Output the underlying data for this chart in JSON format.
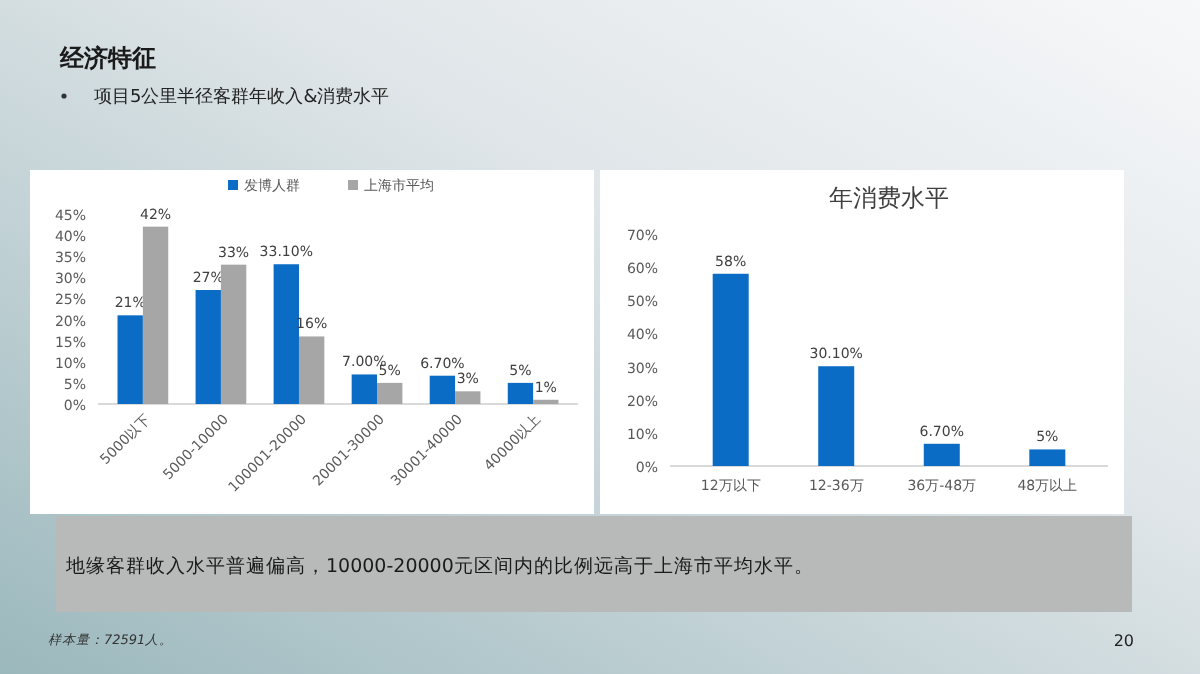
{
  "chart_data": [
    {
      "type": "bar",
      "title": "经济特征",
      "subtitle": "项目5公里半径客群年收入&消费水平",
      "categories": [
        "5000以下",
        "5000-10000",
        "100001-20000",
        "20001-30000",
        "30001-40000",
        "40000以上"
      ],
      "series": [
        {
          "name": "发博人群",
          "color": "#0a6cc4",
          "values": [
            21,
            27,
            33.1,
            7,
            6.7,
            5
          ],
          "value_labels": [
            "21%",
            "27%",
            "33.10%",
            "7.00%",
            "6.70%",
            "5%"
          ]
        },
        {
          "name": "上海市平均",
          "color": "#a6a6a6",
          "values": [
            42,
            33,
            16,
            5,
            3,
            1
          ],
          "value_labels": [
            "42%",
            "33%",
            "16%",
            "5%",
            "3%",
            "1%"
          ]
        }
      ],
      "ylim": [
        0,
        45
      ],
      "yticks": [
        {
          "value": 0,
          "label": "0%"
        },
        {
          "value": 5,
          "label": "5%"
        },
        {
          "value": 10,
          "label": "10%"
        },
        {
          "value": 15,
          "label": "15%"
        },
        {
          "value": 20,
          "label": "20%"
        },
        {
          "value": 25,
          "label": "25%"
        },
        {
          "value": 30,
          "label": "30%"
        },
        {
          "value": 35,
          "label": "35%"
        },
        {
          "value": 40,
          "label": "40%"
        },
        {
          "value": 45,
          "label": "45%"
        }
      ],
      "legend": "top",
      "annotations": [
        "地缘客群收入水平普遍偏高，10000-20000元区间内的比例远高于上海市平均水平。",
        "样本量：72591人。",
        "20"
      ]
    },
    {
      "type": "bar",
      "title": "年消费水平",
      "categories": [
        "12万以下",
        "12-36万",
        "36万-48万",
        "48万以上"
      ],
      "series": [
        {
          "color": "#0a6cc4",
          "values": [
            58,
            30.1,
            6.7,
            5
          ],
          "value_labels": [
            "58%",
            "30.10%",
            "6.70%",
            "5%"
          ]
        }
      ],
      "ylim": [
        0,
        70
      ],
      "yticks": [
        {
          "value": 0,
          "label": "0%"
        },
        {
          "value": 10,
          "label": "10%"
        },
        {
          "value": 20,
          "label": "20%"
        },
        {
          "value": 30,
          "label": "30%"
        },
        {
          "value": 40,
          "label": "40%"
        },
        {
          "value": 50,
          "label": "50%"
        },
        {
          "value": 60,
          "label": "60%"
        },
        {
          "value": 70,
          "label": "70%"
        }
      ]
    }
  ]
}
